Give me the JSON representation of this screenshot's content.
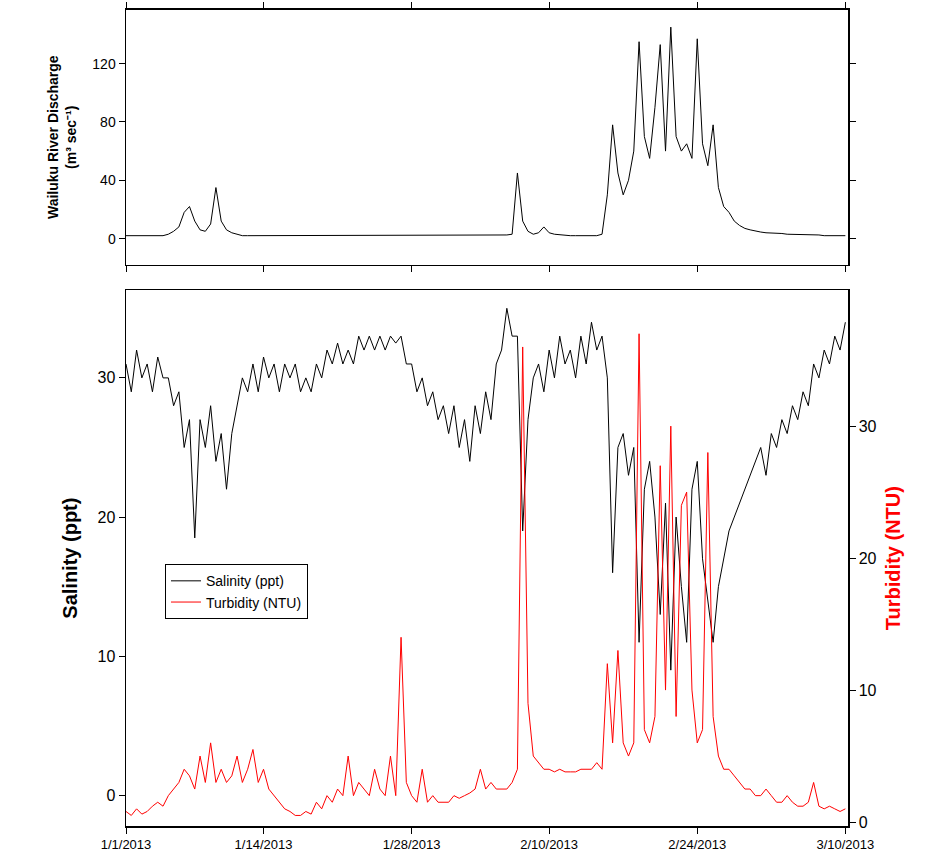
{
  "chart_data": [
    {
      "type": "line",
      "y_label": "Wailuku River Discharge (m³ sec⁻¹)",
      "tick_labels": "y",
      "xlim": [
        "2013-01-01 00:00",
        "2013-03-10 06:00"
      ],
      "xticks": [
        {
          "value": "2013-01-01",
          "label": "1/1/2013"
        },
        {
          "value": "2013-01-14",
          "label": "1/14/2013"
        },
        {
          "value": "2013-01-28",
          "label": "1/28/2013"
        },
        {
          "value": "2013-02-10",
          "label": "2/10/2013"
        },
        {
          "value": "2013-02-24",
          "label": "2/24/2013"
        },
        {
          "value": "2013-03-10",
          "label": "3/10/2013"
        }
      ],
      "ylim": [
        -18,
        157
      ],
      "yticks": [
        0,
        40,
        80,
        120
      ],
      "x": [
        "2013-01-01 00:00",
        "2013-01-01 12:00",
        "2013-01-02 00:00",
        "2013-01-02 12:00",
        "2013-01-03 00:00",
        "2013-01-03 12:00",
        "2013-01-04 00:00",
        "2013-01-04 12:00",
        "2013-01-05 00:00",
        "2013-01-05 12:00",
        "2013-01-06 00:00",
        "2013-01-06 12:00",
        "2013-01-07 00:00",
        "2013-01-07 12:00",
        "2013-01-08 00:00",
        "2013-01-08 12:00",
        "2013-01-09 00:00",
        "2013-01-09 12:00",
        "2013-01-10 00:00",
        "2013-01-10 12:00",
        "2013-01-11 00:00",
        "2013-01-11 12:00",
        "2013-01-12 00:00",
        "2013-01-12 12:00",
        "2013-01-13 00:00",
        "2013-01-13 12:00",
        "2013-01-14 00:00",
        "2013-01-14 12:00",
        "2013-01-15 00:00",
        "2013-01-15 12:00",
        "2013-01-16 00:00",
        "2013-01-16 12:00",
        "2013-01-17 00:00",
        "2013-01-17 12:00",
        "2013-01-18 00:00",
        "2013-01-18 12:00",
        "2013-01-19 00:00",
        "2013-01-19 12:00",
        "2013-01-20 00:00",
        "2013-01-20 12:00",
        "2013-01-21 00:00",
        "2013-01-21 12:00",
        "2013-01-22 00:00",
        "2013-01-22 12:00",
        "2013-01-23 00:00",
        "2013-01-23 12:00",
        "2013-01-24 00:00",
        "2013-01-24 12:00",
        "2013-01-25 00:00",
        "2013-01-25 12:00",
        "2013-01-26 00:00",
        "2013-01-26 12:00",
        "2013-01-27 00:00",
        "2013-01-27 12:00",
        "2013-01-28 00:00",
        "2013-01-28 12:00",
        "2013-01-29 00:00",
        "2013-01-29 12:00",
        "2013-01-30 00:00",
        "2013-01-30 12:00",
        "2013-01-31 00:00",
        "2013-01-31 12:00",
        "2013-02-01 00:00",
        "2013-02-01 12:00",
        "2013-02-02 00:00",
        "2013-02-02 12:00",
        "2013-02-03 00:00",
        "2013-02-03 12:00",
        "2013-02-04 00:00",
        "2013-02-04 12:00",
        "2013-02-05 00:00",
        "2013-02-05 12:00",
        "2013-02-06 00:00",
        "2013-02-06 12:00",
        "2013-02-07 00:00",
        "2013-02-07 12:00",
        "2013-02-08 00:00",
        "2013-02-08 12:00",
        "2013-02-09 00:00",
        "2013-02-09 12:00",
        "2013-02-10 00:00",
        "2013-02-10 12:00",
        "2013-02-11 00:00",
        "2013-02-11 12:00",
        "2013-02-12 00:00",
        "2013-02-12 12:00",
        "2013-02-13 00:00",
        "2013-02-13 12:00",
        "2013-02-14 00:00",
        "2013-02-14 12:00",
        "2013-02-15 00:00",
        "2013-02-15 12:00",
        "2013-02-16 00:00",
        "2013-02-16 12:00",
        "2013-02-17 00:00",
        "2013-02-17 12:00",
        "2013-02-18 00:00",
        "2013-02-18 12:00",
        "2013-02-19 00:00",
        "2013-02-19 12:00",
        "2013-02-20 00:00",
        "2013-02-20 12:00",
        "2013-02-21 00:00",
        "2013-02-21 12:00",
        "2013-02-22 00:00",
        "2013-02-22 12:00",
        "2013-02-23 00:00",
        "2013-02-23 12:00",
        "2013-02-24 00:00",
        "2013-02-24 12:00",
        "2013-02-25 00:00",
        "2013-02-25 12:00",
        "2013-02-26 00:00",
        "2013-02-26 12:00",
        "2013-02-27 00:00",
        "2013-02-27 12:00",
        "2013-02-28 00:00",
        "2013-02-28 12:00",
        "2013-03-01 00:00",
        "2013-03-01 12:00",
        "2013-03-02 00:00",
        "2013-03-02 12:00",
        "2013-03-03 00:00",
        "2013-03-03 12:00",
        "2013-03-04 00:00",
        "2013-03-04 12:00",
        "2013-03-05 00:00",
        "2013-03-05 12:00",
        "2013-03-06 00:00",
        "2013-03-06 12:00",
        "2013-03-07 00:00",
        "2013-03-07 12:00",
        "2013-03-08 00:00",
        "2013-03-08 12:00",
        "2013-03-09 00:00",
        "2013-03-09 12:00",
        "2013-03-10 00:00"
      ],
      "series": [
        {
          "color": "#000000",
          "values": [
            2,
            2,
            2,
            2,
            2,
            2,
            2,
            2,
            3,
            5,
            8,
            18,
            22,
            12,
            6,
            5,
            10,
            35,
            12,
            6,
            4,
            3,
            2,
            2,
            2,
            2,
            2,
            2,
            2,
            2,
            2,
            2,
            2,
            2,
            2,
            2,
            2,
            2,
            2,
            2,
            2,
            2,
            2,
            2,
            2,
            2,
            2,
            2,
            2,
            2,
            2,
            2,
            2,
            2,
            2,
            2,
            2,
            2,
            2,
            2,
            2,
            2,
            2,
            2,
            2,
            2,
            2,
            2,
            2,
            2,
            2,
            2,
            2.5,
            3,
            45,
            12,
            5,
            3,
            4,
            8,
            4,
            3,
            2.5,
            2.5,
            2,
            2,
            2,
            2,
            2,
            2,
            3,
            30,
            78,
            45,
            30,
            40,
            60,
            135,
            70,
            55,
            90,
            133,
            60,
            145,
            70,
            60,
            65,
            55,
            137,
            65,
            50,
            78,
            35,
            22,
            18,
            12,
            9,
            7,
            6,
            5,
            4.5,
            4,
            4,
            3.5,
            3.5,
            3,
            3,
            3,
            2.5,
            2.5,
            2.5,
            2.5,
            2,
            2,
            2,
            2,
            2
          ]
        }
      ]
    },
    {
      "type": "line",
      "y_label": "Salinity (ppt)",
      "y2_label": "Turbidity (NTU)",
      "legend": "left",
      "xlim": [
        "2013-01-01 00:00",
        "2013-03-10 06:00"
      ],
      "xticks": [
        {
          "value": "2013-01-01",
          "label": "1/1/2013"
        },
        {
          "value": "2013-01-14",
          "label": "1/14/2013"
        },
        {
          "value": "2013-01-28",
          "label": "1/28/2013"
        },
        {
          "value": "2013-02-10",
          "label": "2/10/2013"
        },
        {
          "value": "2013-02-24",
          "label": "2/24/2013"
        },
        {
          "value": "2013-03-10",
          "label": "3/10/2013"
        }
      ],
      "ylim": [
        -2.2,
        36.3
      ],
      "yticks": [
        0,
        10,
        20,
        30
      ],
      "y2lim": [
        -0.3,
        40.3
      ],
      "y2ticks": [
        0,
        10,
        20,
        30
      ],
      "x": [
        "2013-01-01 00:00",
        "2013-01-01 12:00",
        "2013-01-02 00:00",
        "2013-01-02 12:00",
        "2013-01-03 00:00",
        "2013-01-03 12:00",
        "2013-01-04 00:00",
        "2013-01-04 12:00",
        "2013-01-05 00:00",
        "2013-01-05 12:00",
        "2013-01-06 00:00",
        "2013-01-06 12:00",
        "2013-01-07 00:00",
        "2013-01-07 12:00",
        "2013-01-08 00:00",
        "2013-01-08 12:00",
        "2013-01-09 00:00",
        "2013-01-09 12:00",
        "2013-01-10 00:00",
        "2013-01-10 12:00",
        "2013-01-11 00:00",
        "2013-01-11 12:00",
        "2013-01-12 00:00",
        "2013-01-12 12:00",
        "2013-01-13 00:00",
        "2013-01-13 12:00",
        "2013-01-14 00:00",
        "2013-01-14 12:00",
        "2013-01-15 00:00",
        "2013-01-15 12:00",
        "2013-01-16 00:00",
        "2013-01-16 12:00",
        "2013-01-17 00:00",
        "2013-01-17 12:00",
        "2013-01-18 00:00",
        "2013-01-18 12:00",
        "2013-01-19 00:00",
        "2013-01-19 12:00",
        "2013-01-20 00:00",
        "2013-01-20 12:00",
        "2013-01-21 00:00",
        "2013-01-21 12:00",
        "2013-01-22 00:00",
        "2013-01-22 12:00",
        "2013-01-23 00:00",
        "2013-01-23 12:00",
        "2013-01-24 00:00",
        "2013-01-24 12:00",
        "2013-01-25 00:00",
        "2013-01-25 12:00",
        "2013-01-26 00:00",
        "2013-01-26 12:00",
        "2013-01-27 00:00",
        "2013-01-27 12:00",
        "2013-01-28 00:00",
        "2013-01-28 12:00",
        "2013-01-29 00:00",
        "2013-01-29 12:00",
        "2013-01-30 00:00",
        "2013-01-30 12:00",
        "2013-01-31 00:00",
        "2013-01-31 12:00",
        "2013-02-01 00:00",
        "2013-02-01 12:00",
        "2013-02-02 00:00",
        "2013-02-02 12:00",
        "2013-02-03 00:00",
        "2013-02-03 12:00",
        "2013-02-04 00:00",
        "2013-02-04 12:00",
        "2013-02-05 00:00",
        "2013-02-05 12:00",
        "2013-02-06 00:00",
        "2013-02-06 12:00",
        "2013-02-07 00:00",
        "2013-02-07 12:00",
        "2013-02-08 00:00",
        "2013-02-08 12:00",
        "2013-02-09 00:00",
        "2013-02-09 12:00",
        "2013-02-10 00:00",
        "2013-02-10 12:00",
        "2013-02-11 00:00",
        "2013-02-11 12:00",
        "2013-02-12 00:00",
        "2013-02-12 12:00",
        "2013-02-13 00:00",
        "2013-02-13 12:00",
        "2013-02-14 00:00",
        "2013-02-14 12:00",
        "2013-02-15 00:00",
        "2013-02-15 12:00",
        "2013-02-16 00:00",
        "2013-02-16 12:00",
        "2013-02-17 00:00",
        "2013-02-17 12:00",
        "2013-02-18 00:00",
        "2013-02-18 12:00",
        "2013-02-19 00:00",
        "2013-02-19 12:00",
        "2013-02-20 00:00",
        "2013-02-20 12:00",
        "2013-02-21 00:00",
        "2013-02-21 12:00",
        "2013-02-22 00:00",
        "2013-02-22 12:00",
        "2013-02-23 00:00",
        "2013-02-23 12:00",
        "2013-02-24 00:00",
        "2013-02-24 12:00",
        "2013-02-25 00:00",
        "2013-02-25 12:00",
        "2013-02-26 00:00",
        "2013-02-26 12:00",
        "2013-02-27 00:00",
        "2013-02-27 12:00",
        "2013-02-28 00:00",
        "2013-02-28 12:00",
        "2013-03-01 00:00",
        "2013-03-01 12:00",
        "2013-03-02 00:00",
        "2013-03-02 12:00",
        "2013-03-03 00:00",
        "2013-03-03 12:00",
        "2013-03-04 00:00",
        "2013-03-04 12:00",
        "2013-03-05 00:00",
        "2013-03-05 12:00",
        "2013-03-06 00:00",
        "2013-03-06 12:00",
        "2013-03-07 00:00",
        "2013-03-07 12:00",
        "2013-03-08 00:00",
        "2013-03-08 12:00",
        "2013-03-09 00:00",
        "2013-03-09 12:00",
        "2013-03-10 00:00"
      ],
      "series": [
        {
          "name": "Salinity (ppt)",
          "color": "#000000",
          "values": [
            31,
            29,
            32,
            30,
            31,
            29,
            31.5,
            30,
            30,
            28,
            29,
            25,
            27,
            18.5,
            27,
            25,
            28,
            24,
            26,
            22,
            26,
            28,
            30,
            29,
            31,
            29,
            31.5,
            30,
            31,
            29,
            31,
            30,
            31,
            29,
            30,
            29,
            31,
            30,
            32,
            31,
            32.5,
            31,
            32,
            31,
            33,
            32,
            33,
            32,
            33,
            32,
            33,
            32.5,
            33,
            31,
            31,
            29,
            30,
            28,
            29,
            27,
            28,
            26,
            28,
            25,
            27,
            24,
            28,
            26,
            29,
            27,
            31,
            32,
            35,
            33,
            33,
            19,
            27,
            30,
            31,
            29,
            32,
            30,
            33,
            31,
            32,
            30,
            33,
            31,
            34,
            32,
            33,
            30,
            16,
            25,
            26,
            23,
            25,
            11,
            22,
            24,
            20,
            13,
            21,
            9,
            20,
            15,
            11,
            22,
            24,
            17,
            14,
            11,
            15,
            17,
            19,
            20,
            21,
            22,
            23,
            24,
            25,
            23,
            26,
            25,
            27,
            26,
            28,
            27,
            29,
            28,
            31,
            30,
            32,
            31,
            33,
            32,
            34
          ]
        },
        {
          "name": "Turbidity (NTU)",
          "color": "#ff0000",
          "axis": "y2",
          "values": [
            0.8,
            0.5,
            1,
            0.6,
            0.8,
            1.2,
            1.5,
            1.2,
            2,
            2.5,
            3,
            4,
            3.5,
            2.5,
            5,
            3,
            6,
            3,
            4,
            3,
            3.5,
            5,
            3,
            4,
            5.5,
            3,
            4,
            2.5,
            2,
            1.5,
            1,
            0.8,
            0.5,
            0.5,
            0.8,
            0.6,
            1.5,
            1,
            2,
            1.5,
            2.5,
            2,
            5,
            2,
            3,
            2.5,
            2,
            4,
            2.5,
            2,
            5,
            2,
            14,
            3,
            2,
            1.5,
            4,
            1.5,
            2,
            1.5,
            1.5,
            1.5,
            2,
            1.8,
            2,
            2.2,
            2.5,
            4,
            2.5,
            3,
            2.5,
            2.5,
            2.5,
            3,
            4,
            36,
            9,
            5,
            4.5,
            4,
            4,
            3.8,
            4,
            3.8,
            3.8,
            3.8,
            4,
            4,
            4,
            4.5,
            4,
            12,
            6,
            13,
            6,
            5,
            6,
            37,
            7,
            6,
            8,
            27,
            10,
            30,
            8,
            24,
            25,
            10,
            6,
            7,
            28,
            8,
            5,
            4,
            4,
            3.5,
            3,
            2.5,
            2.5,
            2,
            2,
            2.5,
            2,
            1.5,
            1.5,
            2,
            1.5,
            1.2,
            1.2,
            1.5,
            3,
            1.2,
            1,
            1.2,
            1,
            0.8,
            1
          ]
        }
      ]
    }
  ]
}
